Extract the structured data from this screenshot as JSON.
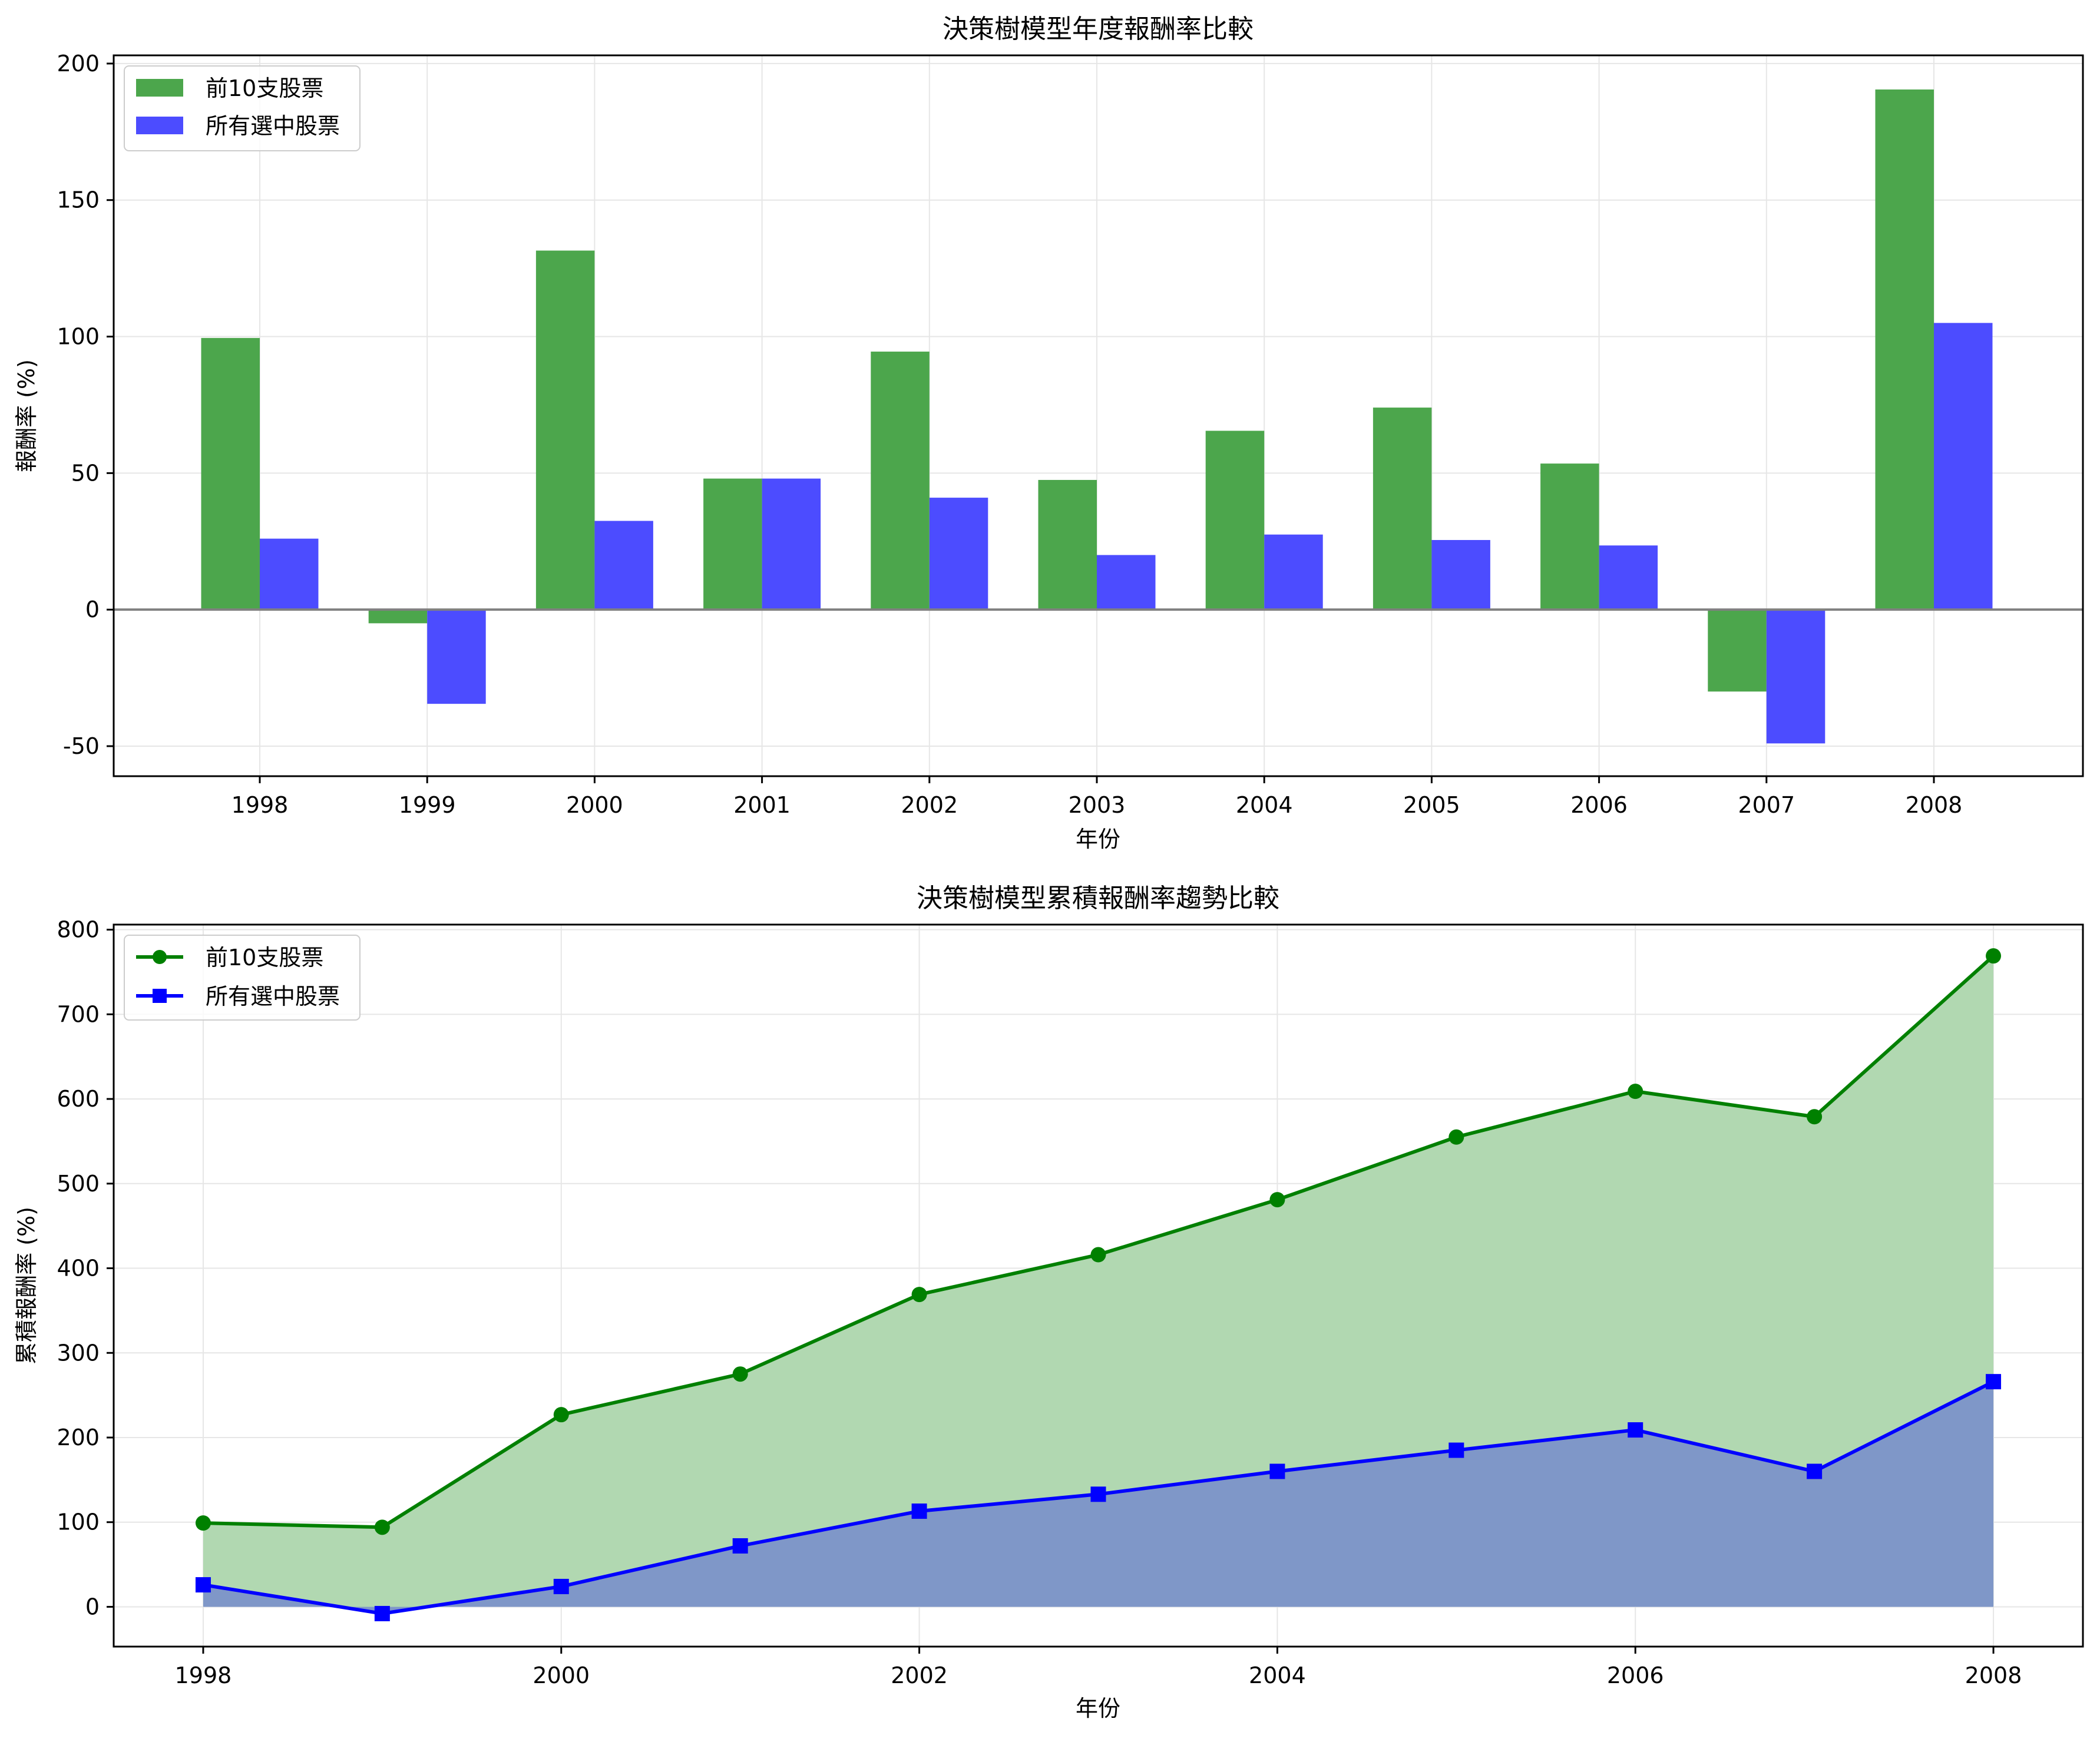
{
  "chart_data": [
    {
      "type": "bar",
      "title": "決策樹模型年度報酬率比較",
      "xlabel": "年份",
      "ylabel": "報酬率 (%)",
      "categories": [
        "1998",
        "1999",
        "2000",
        "2001",
        "2002",
        "2003",
        "2004",
        "2005",
        "2006",
        "2007",
        "2008"
      ],
      "series": [
        {
          "name": "前10支股票",
          "color": "#4ca64c",
          "values": [
            99.5,
            -5,
            131.5,
            48,
            94.5,
            47.5,
            65.5,
            74,
            53.5,
            -30,
            190.5
          ]
        },
        {
          "name": "所有選中股票",
          "color": "#4c4cff",
          "values": [
            26,
            -34.5,
            32.5,
            48,
            41,
            20,
            27.5,
            25.5,
            23.5,
            -49,
            105
          ]
        }
      ],
      "ylim": [
        -61,
        203
      ],
      "yticks": [
        -50,
        0,
        50,
        100,
        150,
        200
      ],
      "grid": true,
      "legend": "upper-left"
    },
    {
      "type": "area",
      "title": "決策樹模型累積報酬率趨勢比較",
      "xlabel": "年份",
      "ylabel": "累積報酬率 (%)",
      "x": [
        1998,
        1999,
        2000,
        2001,
        2002,
        2003,
        2004,
        2005,
        2006,
        2007,
        2008
      ],
      "series": [
        {
          "name": "前10支股票",
          "color": "#008000",
          "fill": "#b1d8b1",
          "marker": "circle",
          "values": [
            99,
            94,
            227,
            275,
            369,
            416,
            481,
            555,
            609,
            579,
            769
          ]
        },
        {
          "name": "所有選中股票",
          "color": "#0000ff",
          "fill": "#7f97c8",
          "marker": "square",
          "values": [
            26,
            -8,
            24,
            72,
            113,
            133,
            160,
            185,
            209,
            160,
            266
          ]
        }
      ],
      "xlim": [
        1997.5,
        2008.5
      ],
      "xticks": [
        1998,
        2000,
        2002,
        2004,
        2006,
        2008
      ],
      "ylim": [
        -47,
        806
      ],
      "yticks": [
        0,
        100,
        200,
        300,
        400,
        500,
        600,
        700,
        800
      ],
      "grid": true,
      "legend": "upper-left"
    }
  ]
}
